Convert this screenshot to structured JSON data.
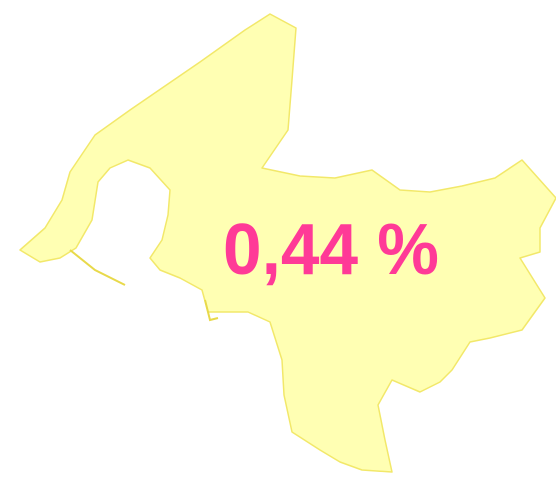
{
  "map": {
    "label": "0,44 %"
  }
}
